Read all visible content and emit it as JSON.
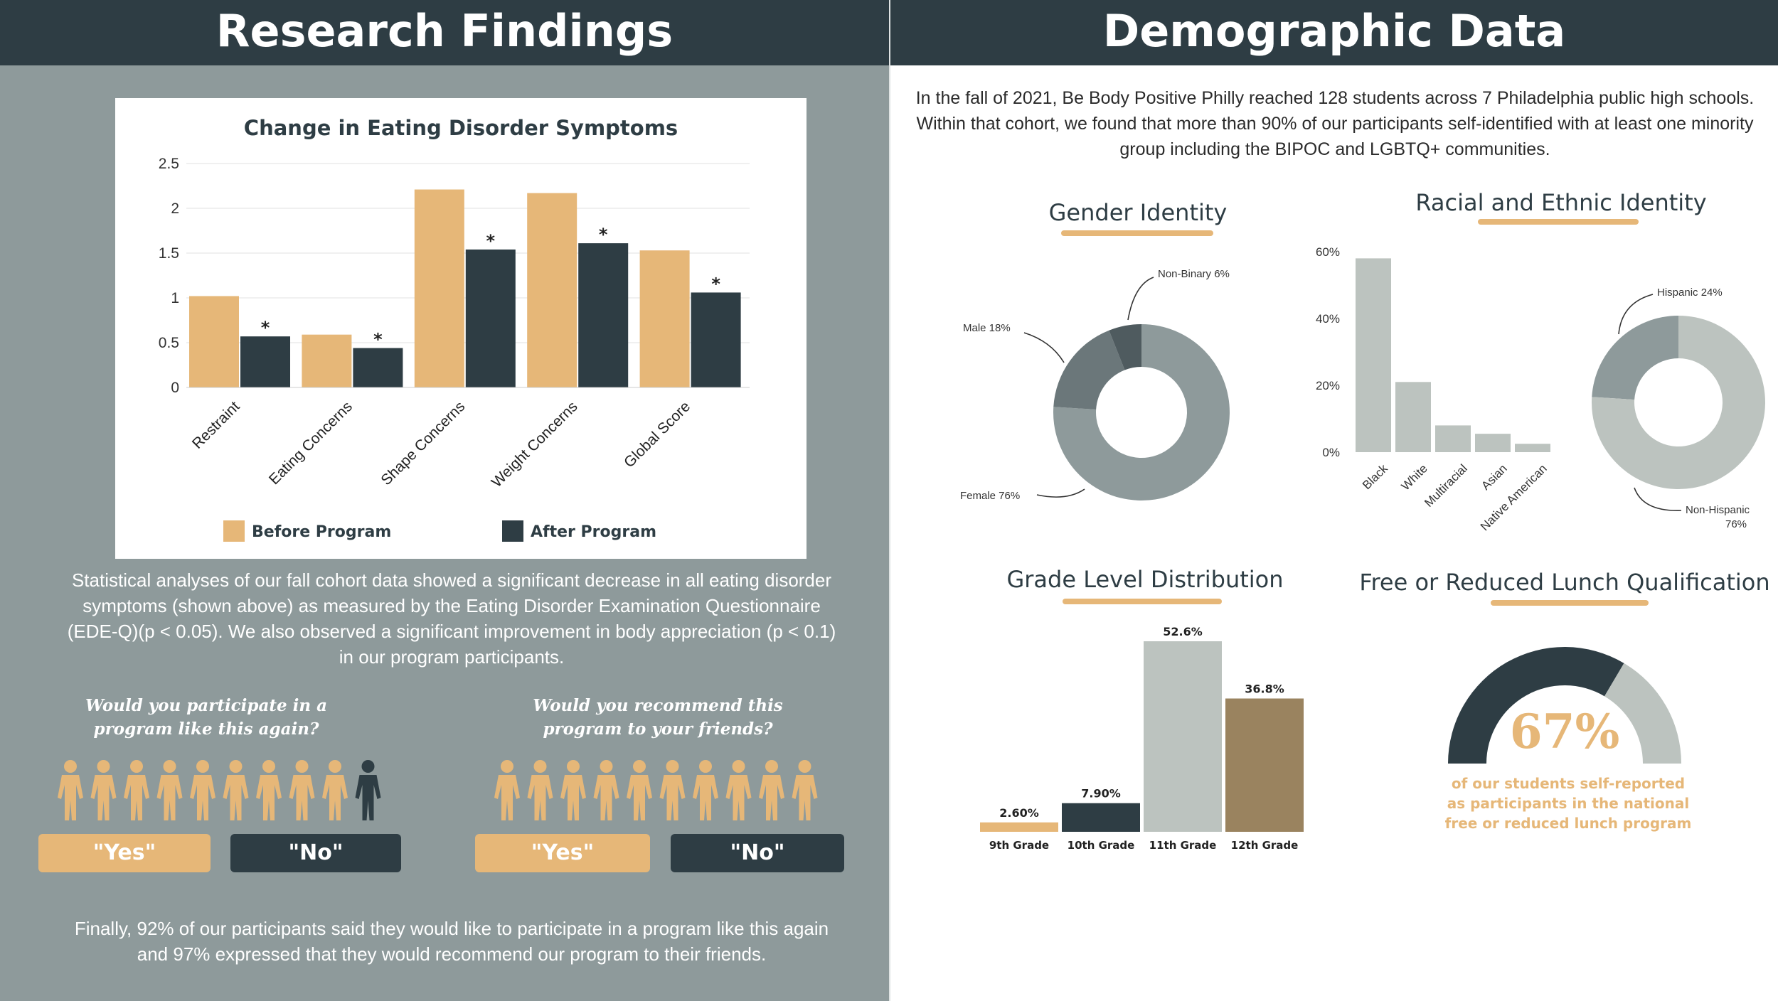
{
  "left": {
    "title": "Research Findings",
    "paragraph": "Statistical analyses of our fall cohort data showed a significant decrease in all eating disorder symptoms (shown above) as measured by the Eating Disorder Examination Questionnaire (EDE-Q)(p < 0.05). We also observed a significant improvement in body appreciation (p < 0.1) in our program participants.",
    "q1": "Would you participate in a program like this again?",
    "q2": "Would you recommend this program to your friends?",
    "yes_label": "\"Yes\"",
    "no_label": "\"No\"",
    "closing": "Finally, 92% of our participants said they would like to participate in a program like this again and 97% expressed that they would recommend our program to their friends.",
    "q1_yes_fraction": 0.92,
    "q2_yes_fraction": 0.97
  },
  "right": {
    "title": "Demographic Data",
    "paragraph": "In the fall of 2021, Be Body Positive Philly reached 128 students across 7 Philadelphia public high schools. Within that cohort, we found that more than 90% of our participants self-identified with at least one minority group including the BIPOC and LGBTQ+ communities.",
    "lunch_caption": "of our students self-reported as participants in the national free or reduced lunch program"
  },
  "colors": {
    "before": "#e6b778",
    "after": "#2e3d44",
    "grey_dark": "#6b777a",
    "grey_mid": "#8e9a9b",
    "grey_light": "#bcc3bf",
    "brown": "#9a835f"
  },
  "chart_data": [
    {
      "type": "bar",
      "title": "Change in Eating Disorder Symptoms",
      "categories": [
        "Restraint",
        "Eating Concerns",
        "Shape Concerns",
        "Weight Concerns",
        "Global Score"
      ],
      "series": [
        {
          "name": "Before Program",
          "values": [
            1.02,
            0.59,
            2.21,
            2.17,
            1.53
          ]
        },
        {
          "name": "After Program",
          "values": [
            0.57,
            0.44,
            1.54,
            1.61,
            1.06
          ]
        }
      ],
      "annotations": [
        "*",
        "*",
        "*",
        "*",
        "*"
      ],
      "ylim": [
        0,
        2.5
      ],
      "yticks": [
        "0",
        "0.5",
        "1",
        "1.5",
        "2",
        "2.5"
      ],
      "grid": true,
      "legend": "bottom"
    },
    {
      "type": "pie",
      "title": "Gender Identity",
      "slices": [
        {
          "label": "Female 76%",
          "value": 76
        },
        {
          "label": "Male 18%",
          "value": 18
        },
        {
          "label": "Non-Binary 6%",
          "value": 6
        }
      ]
    },
    {
      "type": "bar",
      "title": "Racial and Ethnic Identity",
      "categories": [
        "Black",
        "White",
        "Multiracial",
        "Asian",
        "Native American"
      ],
      "values": [
        58,
        21,
        8,
        5.5,
        2.5
      ],
      "ylim": [
        0,
        60
      ],
      "yticks": [
        "0%",
        "20%",
        "40%",
        "60%"
      ]
    },
    {
      "type": "pie",
      "slices": [
        {
          "label": "Hispanic 24%",
          "value": 24
        },
        {
          "label_lines": [
            "Non-Hispanic",
            "76%"
          ],
          "value": 76
        }
      ]
    },
    {
      "type": "bar",
      "title": "Grade Level Distribution",
      "categories": [
        "9th Grade",
        "10th Grade",
        "11th Grade",
        "12th Grade"
      ],
      "values": [
        2.6,
        7.9,
        52.6,
        36.8
      ],
      "labels": [
        "2.60%",
        "7.90%",
        "52.6%",
        "36.8%"
      ]
    },
    {
      "type": "pie",
      "title": "Free or Reduced Lunch Qualification",
      "value_label": "67%",
      "value": 67
    }
  ]
}
